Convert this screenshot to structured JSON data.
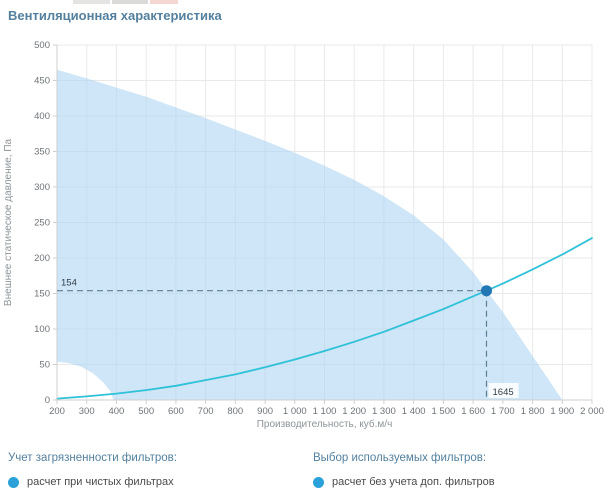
{
  "chart_data": {
    "type": "area",
    "title": "Вентиляционная характеристика",
    "xlabel": "Производительность, куб.м/ч",
    "ylabel": "Внешнее статическое давление, Па",
    "xlim": [
      200,
      2000
    ],
    "ylim": [
      0,
      500
    ],
    "grid": true,
    "x_ticks": [
      200,
      300,
      400,
      500,
      600,
      700,
      800,
      900,
      1000,
      1100,
      1200,
      1300,
      1400,
      1500,
      1600,
      1700,
      1800,
      1900,
      2000
    ],
    "x_tick_labels": [
      "200",
      "300",
      "400",
      "500",
      "600",
      "700",
      "800",
      "900",
      "1 000",
      "1 100",
      "1 200",
      "1 300",
      "1 400",
      "1 500",
      "1 600",
      "1 700",
      "1 800",
      "1 900",
      "2 000"
    ],
    "y_ticks": [
      0,
      50,
      100,
      150,
      200,
      250,
      300,
      350,
      400,
      450,
      500
    ],
    "colors": {
      "area": "#aed6f2",
      "curve": "#2fc1d8",
      "marker": "#2277b5",
      "guide": "#5f7d95",
      "grid": "#e9e9e9",
      "axis": "#cfcfcf"
    },
    "series": [
      {
        "name": "fan-envelope",
        "type": "area",
        "upper": [
          [
            200,
            465
          ],
          [
            300,
            453
          ],
          [
            400,
            440
          ],
          [
            500,
            427
          ],
          [
            600,
            412
          ],
          [
            700,
            397
          ],
          [
            800,
            381
          ],
          [
            900,
            365
          ],
          [
            1000,
            348
          ],
          [
            1100,
            330
          ],
          [
            1200,
            310
          ],
          [
            1300,
            287
          ],
          [
            1400,
            260
          ],
          [
            1500,
            226
          ],
          [
            1600,
            180
          ],
          [
            1645,
            154
          ],
          [
            1700,
            124
          ],
          [
            1800,
            62
          ],
          [
            1900,
            0
          ]
        ],
        "lower_notch": [
          [
            200,
            54
          ],
          [
            240,
            52
          ],
          [
            280,
            47
          ],
          [
            320,
            38
          ],
          [
            355,
            25
          ],
          [
            380,
            12
          ],
          [
            390,
            0
          ]
        ]
      },
      {
        "name": "system-curve",
        "type": "line",
        "points": [
          [
            200,
            2
          ],
          [
            300,
            5
          ],
          [
            400,
            9
          ],
          [
            500,
            14
          ],
          [
            600,
            20
          ],
          [
            700,
            28
          ],
          [
            800,
            36
          ],
          [
            900,
            46
          ],
          [
            1000,
            57
          ],
          [
            1100,
            69
          ],
          [
            1200,
            82
          ],
          [
            1300,
            96
          ],
          [
            1400,
            112
          ],
          [
            1500,
            128
          ],
          [
            1600,
            146
          ],
          [
            1645,
            154
          ],
          [
            1700,
            164
          ],
          [
            1800,
            184
          ],
          [
            1900,
            205
          ],
          [
            2000,
            228
          ]
        ]
      }
    ],
    "operating_point": {
      "x": 1645,
      "y": 154,
      "x_label": "1645",
      "y_label": "154"
    }
  },
  "legend": {
    "groups": [
      {
        "header": "Учет загрязненности фильтров:",
        "items": [
          {
            "label": "расчет при чистых фильтрах",
            "color": "#2aa2d9"
          }
        ]
      },
      {
        "header": "Выбор используемых фильтров:",
        "items": [
          {
            "label": "расчет без учета доп. фильтров",
            "color": "#2aa2d9"
          }
        ]
      }
    ]
  }
}
